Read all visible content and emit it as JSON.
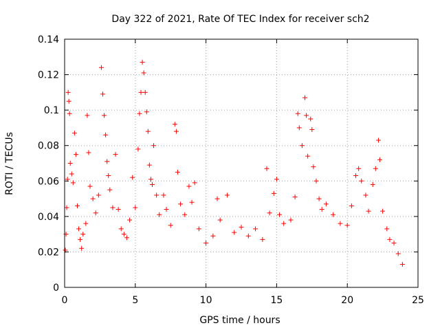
{
  "chart_data": {
    "type": "scatter",
    "title": "Day 322 of 2021, Rate Of TEC Index for receiver sch2",
    "xlabel": "GPS time / hours",
    "ylabel": "ROTI / TECUs",
    "xlim": [
      0,
      25
    ],
    "ylim": [
      0,
      0.14
    ],
    "xticks": [
      0,
      5,
      10,
      15,
      20,
      25
    ],
    "yticks": [
      0,
      0.02,
      0.04,
      0.06,
      0.08,
      0.1,
      0.12,
      0.14
    ],
    "xtick_labels": [
      "0",
      "5",
      "10",
      "15",
      "20",
      "25"
    ],
    "ytick_labels": [
      "0",
      "0.02",
      "0.04",
      "0.06",
      "0.08",
      "0.1",
      "0.12",
      "0.14"
    ],
    "grid": true,
    "grid_style": "dotted",
    "marker": "plus",
    "color": "#ff0000",
    "series": [
      {
        "points": [
          [
            0.05,
            0.021
          ],
          [
            0.1,
            0.03
          ],
          [
            0.15,
            0.045
          ],
          [
            0.2,
            0.061
          ],
          [
            0.25,
            0.11
          ],
          [
            0.3,
            0.105
          ],
          [
            0.35,
            0.098
          ],
          [
            0.4,
            0.07
          ],
          [
            0.5,
            0.064
          ],
          [
            0.6,
            0.059
          ],
          [
            0.7,
            0.087
          ],
          [
            0.8,
            0.075
          ],
          [
            0.9,
            0.046
          ],
          [
            1.0,
            0.033
          ],
          [
            1.1,
            0.027
          ],
          [
            1.2,
            0.022
          ],
          [
            1.3,
            0.03
          ],
          [
            1.5,
            0.036
          ],
          [
            1.6,
            0.097
          ],
          [
            1.7,
            0.076
          ],
          [
            1.8,
            0.057
          ],
          [
            2.0,
            0.05
          ],
          [
            2.2,
            0.042
          ],
          [
            2.4,
            0.052
          ],
          [
            2.6,
            0.124
          ],
          [
            2.7,
            0.109
          ],
          [
            2.8,
            0.097
          ],
          [
            2.9,
            0.086
          ],
          [
            3.0,
            0.071
          ],
          [
            3.1,
            0.063
          ],
          [
            3.2,
            0.055
          ],
          [
            3.4,
            0.045
          ],
          [
            3.6,
            0.075
          ],
          [
            3.8,
            0.044
          ],
          [
            4.0,
            0.033
          ],
          [
            4.2,
            0.03
          ],
          [
            4.4,
            0.028
          ],
          [
            4.6,
            0.038
          ],
          [
            4.8,
            0.062
          ],
          [
            5.0,
            0.045
          ],
          [
            5.2,
            0.078
          ],
          [
            5.3,
            0.098
          ],
          [
            5.4,
            0.11
          ],
          [
            5.5,
            0.127
          ],
          [
            5.6,
            0.121
          ],
          [
            5.7,
            0.11
          ],
          [
            5.8,
            0.099
          ],
          [
            5.9,
            0.088
          ],
          [
            6.0,
            0.069
          ],
          [
            6.1,
            0.061
          ],
          [
            6.2,
            0.058
          ],
          [
            6.3,
            0.08
          ],
          [
            6.5,
            0.052
          ],
          [
            6.7,
            0.041
          ],
          [
            7.0,
            0.052
          ],
          [
            7.2,
            0.044
          ],
          [
            7.5,
            0.035
          ],
          [
            7.8,
            0.092
          ],
          [
            7.9,
            0.088
          ],
          [
            8.0,
            0.065
          ],
          [
            8.2,
            0.047
          ],
          [
            8.5,
            0.041
          ],
          [
            8.8,
            0.057
          ],
          [
            9.0,
            0.048
          ],
          [
            9.2,
            0.059
          ],
          [
            9.5,
            0.033
          ],
          [
            10.0,
            0.025
          ],
          [
            10.5,
            0.029
          ],
          [
            10.8,
            0.05
          ],
          [
            11.0,
            0.038
          ],
          [
            11.5,
            0.052
          ],
          [
            12.0,
            0.031
          ],
          [
            12.5,
            0.034
          ],
          [
            13.0,
            0.029
          ],
          [
            13.5,
            0.033
          ],
          [
            14.0,
            0.027
          ],
          [
            14.3,
            0.067
          ],
          [
            14.5,
            0.042
          ],
          [
            14.8,
            0.053
          ],
          [
            15.0,
            0.061
          ],
          [
            15.2,
            0.041
          ],
          [
            15.5,
            0.036
          ],
          [
            16.0,
            0.038
          ],
          [
            16.3,
            0.051
          ],
          [
            16.5,
            0.098
          ],
          [
            16.6,
            0.09
          ],
          [
            16.8,
            0.08
          ],
          [
            17.0,
            0.107
          ],
          [
            17.1,
            0.097
          ],
          [
            17.2,
            0.074
          ],
          [
            17.4,
            0.095
          ],
          [
            17.5,
            0.089
          ],
          [
            17.6,
            0.068
          ],
          [
            17.8,
            0.06
          ],
          [
            18.0,
            0.05
          ],
          [
            18.2,
            0.044
          ],
          [
            18.5,
            0.047
          ],
          [
            19.0,
            0.041
          ],
          [
            19.5,
            0.036
          ],
          [
            20.0,
            0.035
          ],
          [
            20.3,
            0.046
          ],
          [
            20.6,
            0.063
          ],
          [
            20.8,
            0.067
          ],
          [
            21.0,
            0.06
          ],
          [
            21.3,
            0.052
          ],
          [
            21.5,
            0.043
          ],
          [
            21.8,
            0.058
          ],
          [
            22.0,
            0.067
          ],
          [
            22.2,
            0.083
          ],
          [
            22.3,
            0.072
          ],
          [
            22.5,
            0.043
          ],
          [
            22.8,
            0.033
          ],
          [
            23.0,
            0.027
          ],
          [
            23.3,
            0.025
          ],
          [
            23.6,
            0.019
          ],
          [
            23.9,
            0.013
          ]
        ]
      }
    ]
  }
}
